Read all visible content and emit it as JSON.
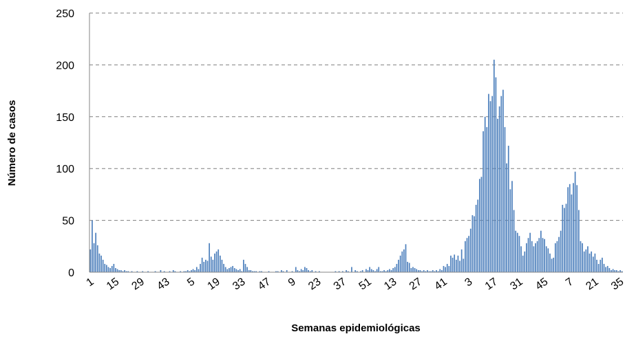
{
  "chart_data": {
    "type": "bar",
    "x_label": "Semanas  epidemiológicas",
    "y_label": "Número de casos",
    "color": "#4f81bd",
    "ylim": [
      0,
      250
    ],
    "yticks": [
      0,
      50,
      100,
      150,
      200,
      250
    ],
    "grid": true,
    "categories": [
      "1",
      null,
      null,
      null,
      null,
      null,
      null,
      null,
      null,
      null,
      null,
      null,
      null,
      null,
      "15",
      null,
      null,
      null,
      null,
      null,
      null,
      null,
      null,
      null,
      null,
      null,
      null,
      null,
      "29",
      null,
      null,
      null,
      null,
      null,
      null,
      null,
      null,
      null,
      null,
      null,
      null,
      null,
      "43",
      null,
      null,
      null,
      null,
      null,
      null,
      null,
      null,
      null,
      null,
      null,
      null,
      null,
      "5",
      null,
      null,
      null,
      null,
      null,
      null,
      null,
      null,
      null,
      null,
      null,
      null,
      null,
      "19",
      null,
      null,
      null,
      null,
      null,
      null,
      null,
      null,
      null,
      null,
      null,
      null,
      null,
      "33",
      null,
      null,
      null,
      null,
      null,
      null,
      null,
      null,
      null,
      null,
      null,
      null,
      null,
      "47",
      null,
      null,
      null,
      null,
      null,
      null,
      null,
      null,
      null,
      null,
      null,
      null,
      null,
      "9",
      null,
      null,
      null,
      null,
      null,
      null,
      null,
      null,
      null,
      null,
      null,
      null,
      null,
      "23",
      null,
      null,
      null,
      null,
      null,
      null,
      null,
      null,
      null,
      null,
      null,
      null,
      null,
      "37",
      null,
      null,
      null,
      null,
      null,
      null,
      null,
      null,
      null,
      null,
      null,
      null,
      null,
      "51",
      null,
      null,
      null,
      null,
      null,
      null,
      null,
      null,
      null,
      null,
      null,
      null,
      null,
      "13",
      null,
      null,
      null,
      null,
      null,
      null,
      null,
      null,
      null,
      null,
      null,
      null,
      null,
      "27",
      null,
      null,
      null,
      null,
      null,
      null,
      null,
      null,
      null,
      null,
      null,
      null,
      null,
      "41",
      null,
      null,
      null,
      null,
      null,
      null,
      null,
      null,
      null,
      null,
      null,
      null,
      null,
      "3",
      null,
      null,
      null,
      null,
      null,
      null,
      null,
      null,
      null,
      null,
      null,
      null,
      null,
      "17",
      null,
      null,
      null,
      null,
      null,
      null,
      null,
      null,
      null,
      null,
      null,
      null,
      null,
      "31",
      null,
      null,
      null,
      null,
      null,
      null,
      null,
      null,
      null,
      null,
      null,
      null,
      null,
      "45",
      null,
      null,
      null,
      null,
      null,
      null,
      null,
      null,
      null,
      null,
      null,
      null,
      null,
      "7",
      null,
      null,
      null,
      null,
      null,
      null,
      null,
      null,
      null,
      null,
      null,
      null,
      null,
      "21",
      null,
      null,
      null,
      null,
      null,
      null,
      null,
      null,
      null,
      null,
      null,
      null,
      null,
      "35",
      null
    ],
    "values": [
      22,
      50,
      28,
      38,
      26,
      18,
      16,
      12,
      8,
      7,
      5,
      4,
      6,
      8,
      4,
      3,
      2,
      2,
      1,
      2,
      1,
      1,
      0,
      1,
      0,
      0,
      1,
      0,
      0,
      1,
      0,
      0,
      1,
      0,
      0,
      0,
      1,
      0,
      0,
      2,
      0,
      1,
      0,
      0,
      1,
      0,
      2,
      1,
      0,
      0,
      1,
      0,
      1,
      1,
      2,
      1,
      2,
      3,
      2,
      5,
      3,
      8,
      14,
      10,
      12,
      11,
      28,
      15,
      12,
      18,
      20,
      22,
      16,
      12,
      8,
      5,
      3,
      4,
      5,
      6,
      4,
      3,
      2,
      3,
      1,
      12,
      8,
      5,
      2,
      2,
      1,
      1,
      1,
      0,
      1,
      1,
      0,
      0,
      0,
      1,
      0,
      0,
      0,
      1,
      1,
      0,
      2,
      1,
      0,
      2,
      0,
      0,
      1,
      0,
      5,
      2,
      1,
      3,
      2,
      5,
      4,
      2,
      1,
      2,
      0,
      1,
      0,
      1,
      0,
      0,
      0,
      0,
      0,
      0,
      0,
      0,
      1,
      0,
      1,
      0,
      1,
      0,
      2,
      1,
      0,
      5,
      0,
      2,
      1,
      0,
      1,
      2,
      0,
      3,
      2,
      5,
      3,
      2,
      1,
      3,
      5,
      1,
      1,
      2,
      1,
      2,
      3,
      2,
      4,
      5,
      8,
      12,
      16,
      20,
      22,
      27,
      10,
      9,
      4,
      5,
      4,
      3,
      2,
      2,
      1,
      2,
      1,
      2,
      1,
      1,
      2,
      1,
      2,
      1,
      3,
      2,
      6,
      5,
      8,
      6,
      16,
      14,
      17,
      12,
      16,
      11,
      22,
      13,
      30,
      33,
      35,
      42,
      55,
      54,
      65,
      70,
      90,
      92,
      136,
      150,
      140,
      172,
      165,
      170,
      205,
      188,
      148,
      160,
      170,
      176,
      140,
      105,
      122,
      80,
      88,
      60,
      40,
      38,
      35,
      25,
      16,
      20,
      28,
      33,
      38,
      30,
      25,
      28,
      30,
      33,
      40,
      33,
      32,
      25,
      23,
      18,
      13,
      14,
      28,
      30,
      34,
      40,
      65,
      62,
      66,
      82,
      85,
      75,
      86,
      97,
      84,
      60,
      30,
      28,
      20,
      22,
      25,
      18,
      20,
      15,
      18,
      12,
      8,
      12,
      14,
      8,
      5,
      6,
      4,
      2,
      3,
      2,
      2,
      1,
      2,
      1
    ]
  }
}
